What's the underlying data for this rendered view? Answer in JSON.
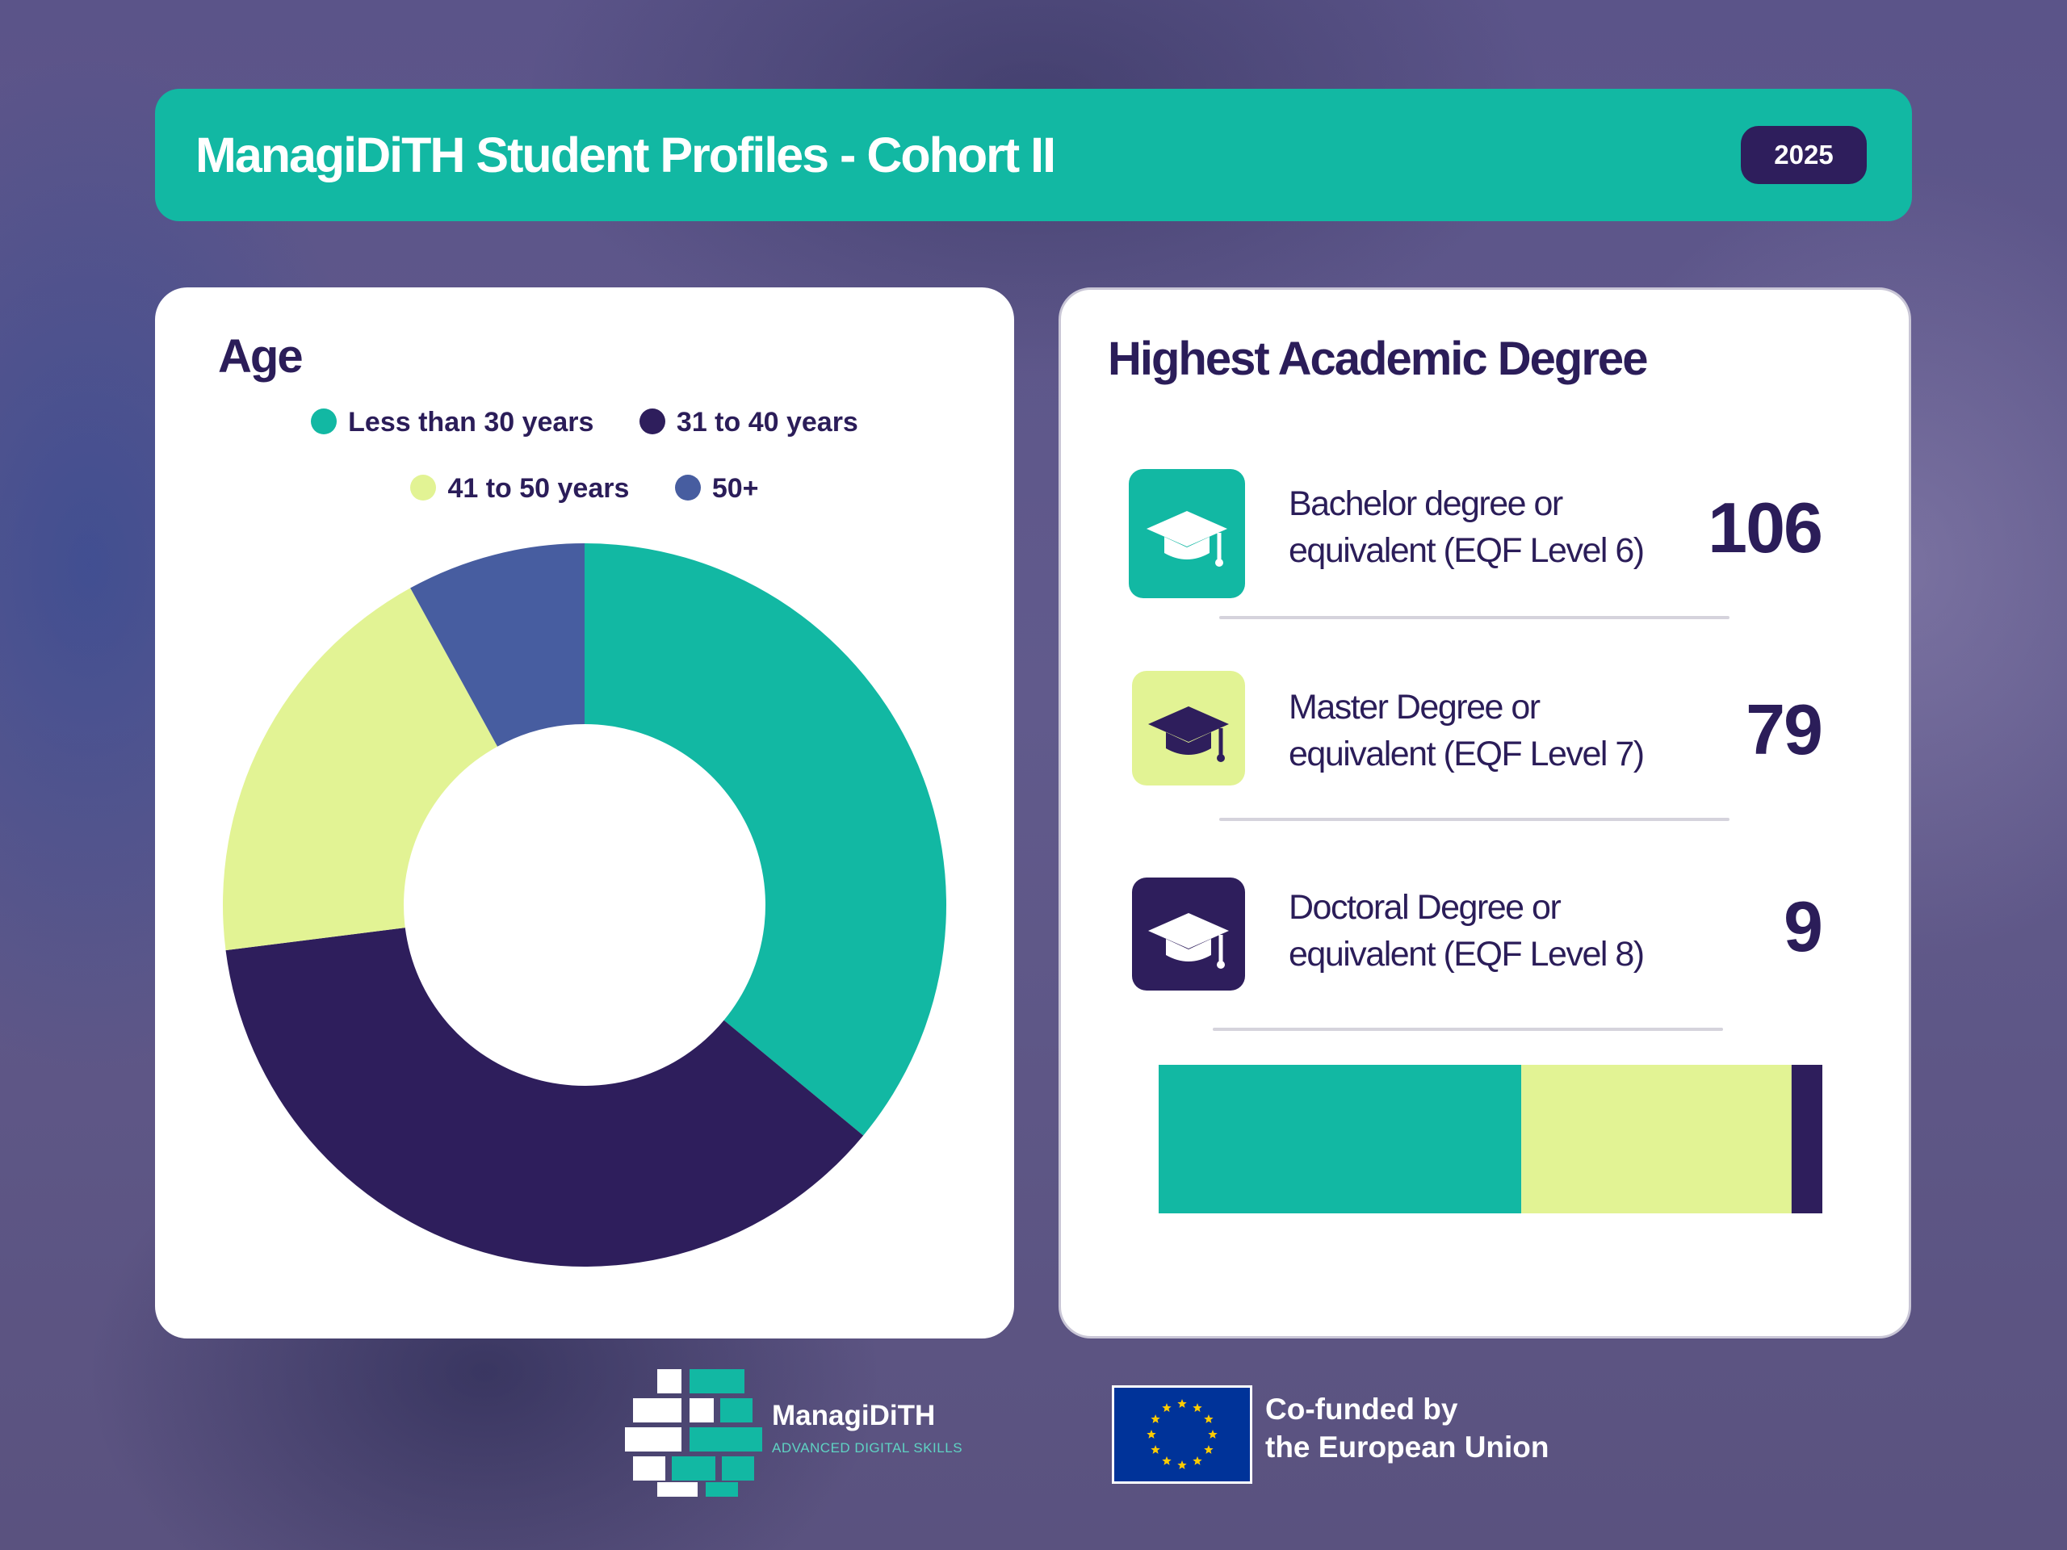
{
  "header": {
    "title": "ManagiDiTH Student Profiles - Cohort II",
    "year": "2025"
  },
  "colors": {
    "teal": "#12b8a3",
    "navy": "#2e1e5c",
    "lime": "#e2f394",
    "blue": "#475da0"
  },
  "chart_data": [
    {
      "type": "pie",
      "title": "Age",
      "hole": true,
      "legend_position": "top",
      "categories": [
        "Less than 30 years",
        "31 to 40 years",
        "41 to 50 years",
        "50+"
      ],
      "values": [
        36,
        37,
        19,
        8
      ],
      "colors": [
        "#12b8a3",
        "#2e1e5c",
        "#e2f394",
        "#475da0"
      ]
    },
    {
      "type": "bar",
      "orientation": "horizontal-stacked",
      "title": "Highest Academic Degree",
      "categories": [
        "Bachelor degree or equivalent (EQF Level 6)",
        "Master Degree or equivalent (EQF Level 7)",
        "Doctoral Degree or equivalent (EQF Level 8)"
      ],
      "values": [
        106,
        79,
        9
      ],
      "colors": [
        "#12b8a3",
        "#e2f394",
        "#2e1e5c"
      ]
    }
  ],
  "degrees": [
    {
      "line1": "Bachelor degree or",
      "line2": "equivalent (EQF Level 6)",
      "value": "106",
      "icon": "graduation-cap-icon"
    },
    {
      "line1": "Master Degree or",
      "line2": "equivalent (EQF Level 7)",
      "value": "79",
      "icon": "graduation-cap-icon"
    },
    {
      "line1": "Doctoral Degree or",
      "line2": "equivalent (EQF Level 8)",
      "value": "9",
      "icon": "graduation-cap-icon"
    }
  ],
  "footer": {
    "brand_name": "ManagiDiTH",
    "brand_sub": "ADVANCED DIGITAL SKILLS",
    "eu_line1": "Co-funded by",
    "eu_line2": "the European Union"
  }
}
